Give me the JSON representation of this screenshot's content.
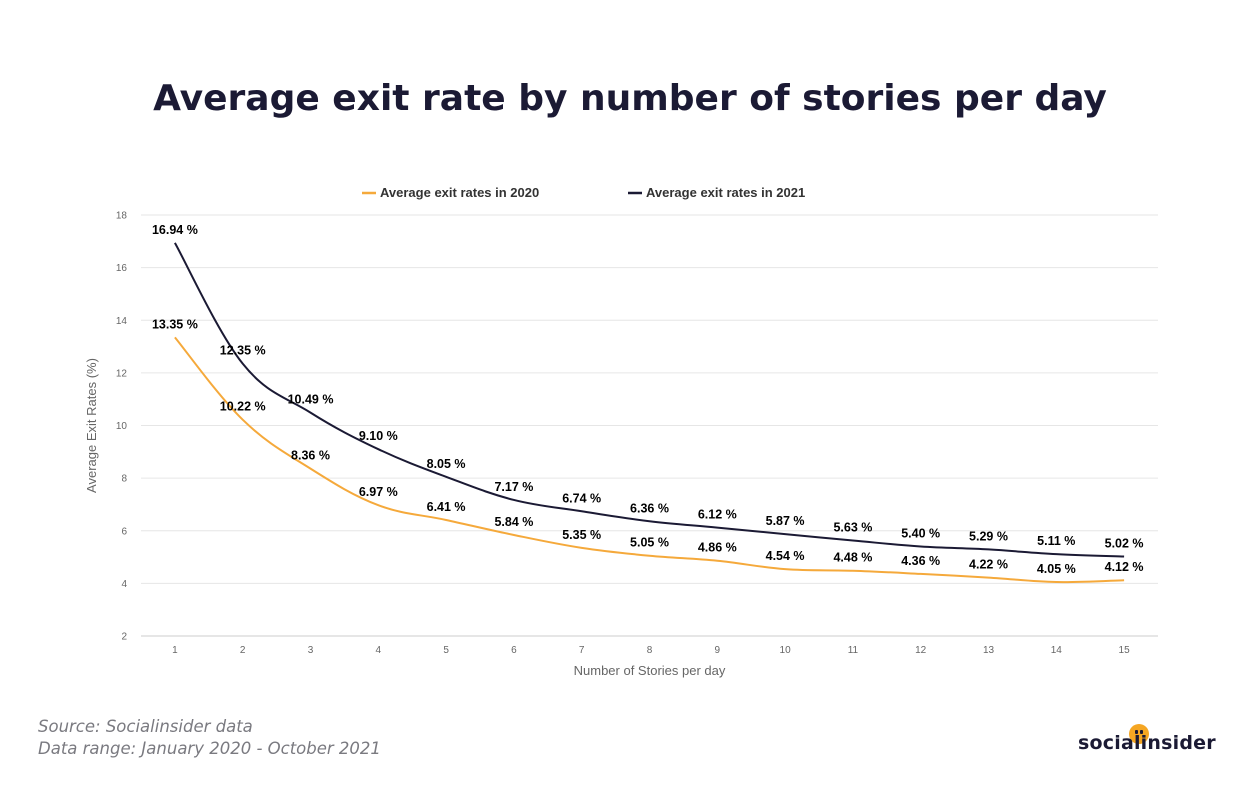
{
  "title": "Average exit rate by number of stories per day",
  "source_lines": [
    "Source: Socialinsider data",
    "Data range: January 2020 - October 2021"
  ],
  "logo_text": "socialinsider",
  "colors": {
    "series_2020": "#f5a93b",
    "series_2021": "#1b1a34",
    "grid": "#e6e6e6",
    "title": "#1b1a34"
  },
  "chart_data": {
    "type": "line",
    "xlabel": "Number of Stories per day",
    "ylabel": "Average Exit Rates (%)",
    "x": [
      1,
      2,
      3,
      4,
      5,
      6,
      7,
      8,
      9,
      10,
      11,
      12,
      13,
      14,
      15
    ],
    "ylim": [
      2,
      18
    ],
    "yticks": [
      2,
      4,
      6,
      8,
      10,
      12,
      14,
      16,
      18
    ],
    "grid": true,
    "legend_position": "top",
    "series": [
      {
        "name": "Average exit rates in 2020",
        "color": "#f5a93b",
        "values": [
          13.35,
          10.22,
          8.36,
          6.97,
          6.41,
          5.84,
          5.35,
          5.05,
          4.86,
          4.54,
          4.48,
          4.36,
          4.22,
          4.05,
          4.12
        ],
        "labels": [
          "13.35 %",
          "10.22 %",
          "8.36 %",
          "6.97 %",
          "6.41 %",
          "5.84 %",
          "5.35 %",
          "5.05 %",
          "4.86 %",
          "4.54 %",
          "4.48 %",
          "4.36 %",
          "4.22 %",
          "4.05 %",
          "4.12 %"
        ]
      },
      {
        "name": "Average exit rates in 2021",
        "color": "#1b1a34",
        "values": [
          16.94,
          12.35,
          10.49,
          9.1,
          8.05,
          7.17,
          6.74,
          6.36,
          6.12,
          5.87,
          5.63,
          5.4,
          5.29,
          5.11,
          5.02
        ],
        "labels": [
          "16.94 %",
          "12.35 %",
          "10.49 %",
          "9.10 %",
          "8.05 %",
          "7.17 %",
          "6.74 %",
          "6.36 %",
          "6.12 %",
          "5.87 %",
          "5.63 %",
          "5.40 %",
          "5.29 %",
          "5.11 %",
          "5.02 %"
        ]
      }
    ]
  }
}
